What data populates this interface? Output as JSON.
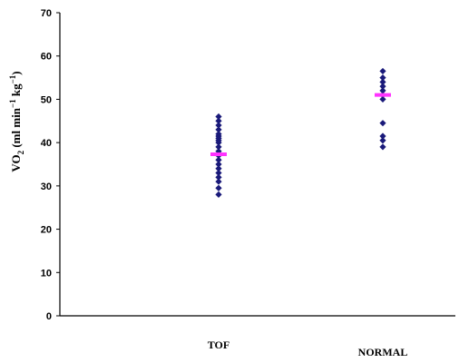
{
  "chart_data": {
    "type": "scatter",
    "ylabel_parts": {
      "base": "VO",
      "sub": "2",
      "unit_open": " (ml min",
      "exp1": "−1",
      "unit_mid": " kg",
      "exp2": "−1",
      "unit_close": ")"
    },
    "ylim": [
      0,
      70
    ],
    "yticks": [
      "0",
      "10",
      "20",
      "30",
      "40",
      "50",
      "60",
      "70"
    ],
    "categories": [
      "TOF",
      "NORMAL"
    ],
    "grid": false,
    "series": [
      {
        "values": [
          [
            28,
            29.5,
            31,
            32,
            33,
            34,
            35,
            36,
            37,
            38,
            39,
            40,
            40.5,
            41,
            41.5,
            42,
            43,
            44,
            45,
            46
          ],
          [
            39,
            40.5,
            41.5,
            44.5,
            50,
            51,
            52,
            53,
            54,
            55,
            56.5
          ]
        ]
      }
    ],
    "means": [
      37.3,
      51
    ],
    "colors": {
      "points": "#1a1a7a",
      "mean": "#ff33ff",
      "axis": "#000000"
    }
  }
}
